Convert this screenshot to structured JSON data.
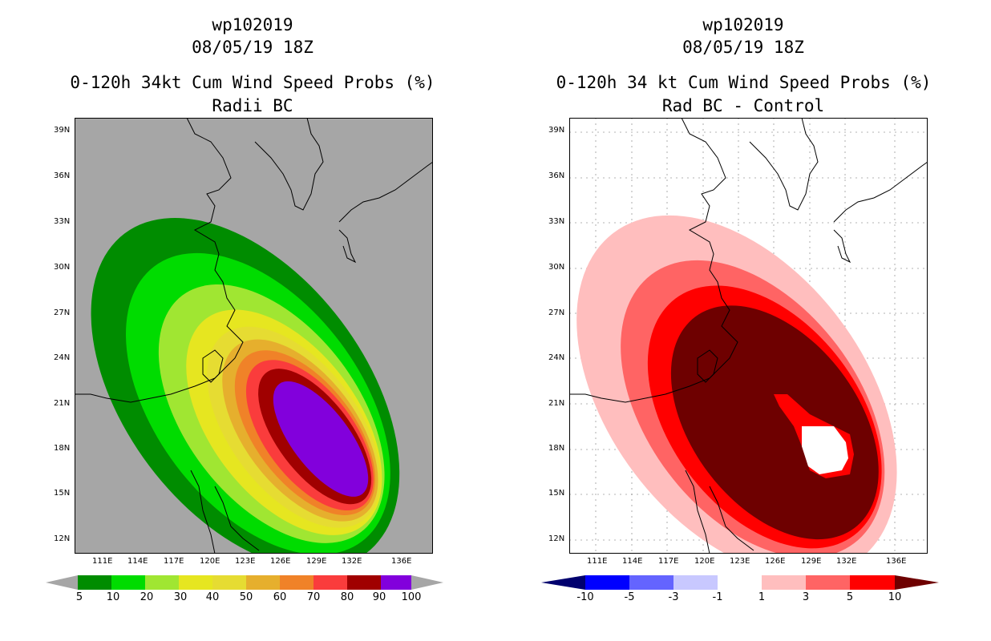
{
  "left_panel": {
    "title_lines": [
      "wp102019",
      "08/05/19 18Z",
      "0-120h 34kt Cum Wind Speed Probs (%)",
      "Radii BC"
    ],
    "lat_labels": [
      "39N",
      "36N",
      "33N",
      "30N",
      "27N",
      "24N",
      "21N",
      "18N",
      "15N",
      "12N"
    ],
    "lon_labels": [
      "111E",
      "114E",
      "117E",
      "120E",
      "123E",
      "126E",
      "129E",
      "132E",
      "136E"
    ],
    "colorbar": {
      "labels": [
        "5",
        "10",
        "20",
        "30",
        "40",
        "50",
        "60",
        "70",
        "80",
        "90",
        "100"
      ],
      "colors": [
        "#a6a6a6",
        "#008c00",
        "#00dc00",
        "#a0e632",
        "#e6e620",
        "#e6dc32",
        "#e6af2d",
        "#f08228",
        "#fa3c3c",
        "#a00000",
        "#8200dc",
        "#a6a6a6"
      ]
    },
    "background_color": "#a6a6a6"
  },
  "right_panel": {
    "title_lines": [
      "wp102019",
      "08/05/19 18Z",
      "0-120h 34 kt Cum Wind Speed Probs (%)",
      "Rad BC - Control"
    ],
    "lat_labels": [
      "39N",
      "36N",
      "33N",
      "30N",
      "27N",
      "24N",
      "21N",
      "18N",
      "15N",
      "12N"
    ],
    "lon_labels": [
      "111E",
      "114E",
      "117E",
      "120E",
      "123E",
      "126E",
      "129E",
      "132E",
      "136E"
    ],
    "colorbar": {
      "labels": [
        "-10",
        "-5",
        "-3",
        "-1",
        "1",
        "3",
        "5",
        "10"
      ],
      "colors": [
        "#00006e",
        "#0000ff",
        "#6464ff",
        "#c8c8ff",
        "#ffffff",
        "#ffbebe",
        "#ff6464",
        "#ff0000",
        "#6e0000"
      ]
    },
    "background_color": "#ffffff"
  }
}
